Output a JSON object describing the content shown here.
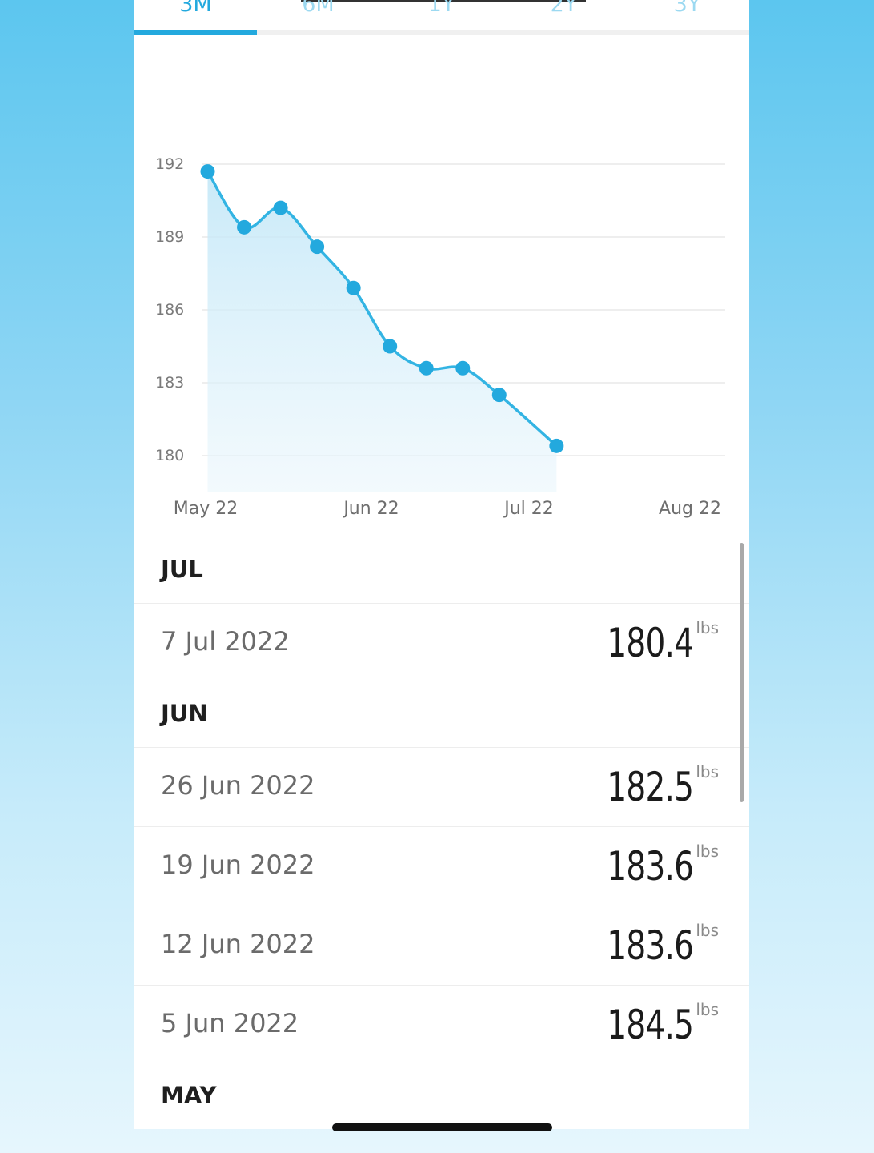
{
  "tabs": [
    {
      "label": "3M",
      "active": true
    },
    {
      "label": "6M",
      "active": false
    },
    {
      "label": "1Y",
      "active": false
    },
    {
      "label": "2Y",
      "active": false
    },
    {
      "label": "3Y",
      "active": false
    }
  ],
  "colors": {
    "accent": "#23a9de",
    "line": "#33b4e3"
  },
  "chart_data": {
    "type": "area",
    "x_tick_labels": [
      "May 22",
      "Jun 22",
      "Jul 22",
      "Aug 22"
    ],
    "y_ticks": [
      192,
      189,
      186,
      183,
      180
    ],
    "ylim": [
      180,
      192
    ],
    "grid": true,
    "series": [
      {
        "points": [
          {
            "x": "2022-05-01",
            "y": 191.7
          },
          {
            "x": "2022-05-08",
            "y": 189.4
          },
          {
            "x": "2022-05-15",
            "y": 190.2
          },
          {
            "x": "2022-05-22",
            "y": 188.6
          },
          {
            "x": "2022-05-29",
            "y": 186.9
          },
          {
            "x": "2022-06-05",
            "y": 184.5
          },
          {
            "x": "2022-06-12",
            "y": 183.6
          },
          {
            "x": "2022-06-19",
            "y": 183.6
          },
          {
            "x": "2022-06-26",
            "y": 182.5
          },
          {
            "x": "2022-07-07",
            "y": 180.4
          }
        ]
      }
    ]
  },
  "list": {
    "unit": "lbs",
    "sections": [
      {
        "header": "JUL",
        "entries": [
          {
            "date": "7 Jul 2022",
            "value": "180.4"
          }
        ]
      },
      {
        "header": "JUN",
        "entries": [
          {
            "date": "26 Jun 2022",
            "value": "182.5"
          },
          {
            "date": "19 Jun 2022",
            "value": "183.6"
          },
          {
            "date": "12 Jun 2022",
            "value": "183.6"
          },
          {
            "date": "5 Jun 2022",
            "value": "184.5"
          }
        ]
      },
      {
        "header": "MAY",
        "entries": []
      }
    ]
  }
}
